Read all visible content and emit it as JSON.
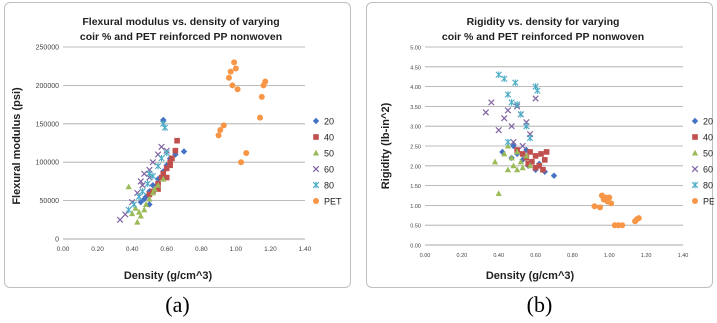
{
  "figure": {
    "caption_a": "(a)",
    "caption_b": "(b)"
  },
  "chart_data": [
    {
      "type": "scatter",
      "title_lines": [
        "Flexural modulus vs. density of varying",
        "coir % and PET reinforced PP nonwoven"
      ],
      "xlabel": "Density (g/cm^3)",
      "ylabel": "Flexural modulus (psi)",
      "xlim": [
        0,
        1.4
      ],
      "ylim": [
        0,
        250000
      ],
      "xticks": [
        "0.00",
        "0.20",
        "0.40",
        "0.60",
        "0.80",
        "1.00",
        "1.20",
        "1.40"
      ],
      "yticks": [
        "0",
        "50000",
        "100000",
        "150000",
        "200000",
        "250000"
      ],
      "grid": "horizontal",
      "legend_position": "right",
      "series": [
        {
          "name": "20",
          "color": "#4472c4",
          "marker": "diamond",
          "points": [
            [
              0.45,
              48000
            ],
            [
              0.48,
              55000
            ],
            [
              0.5,
              62000
            ],
            [
              0.52,
              70000
            ],
            [
              0.55,
              78000
            ],
            [
              0.58,
              88000
            ],
            [
              0.6,
              96000
            ],
            [
              0.62,
              105000
            ],
            [
              0.65,
              110000
            ],
            [
              0.7,
              114000
            ],
            [
              0.58,
              155000
            ],
            [
              0.5,
              45000
            ],
            [
              0.47,
              52000
            ],
            [
              0.55,
              72000
            ]
          ]
        },
        {
          "name": "40",
          "color": "#c0504d",
          "marker": "square",
          "points": [
            [
              0.5,
              58000
            ],
            [
              0.52,
              62000
            ],
            [
              0.55,
              72000
            ],
            [
              0.57,
              80000
            ],
            [
              0.58,
              85000
            ],
            [
              0.6,
              92000
            ],
            [
              0.62,
              100000
            ],
            [
              0.63,
              105000
            ],
            [
              0.65,
              115000
            ],
            [
              0.66,
              128000
            ],
            [
              0.6,
              80000
            ],
            [
              0.55,
              65000
            ],
            [
              0.62,
              96000
            ]
          ]
        },
        {
          "name": "50",
          "color": "#9bbb59",
          "marker": "triangle",
          "points": [
            [
              0.38,
              68000
            ],
            [
              0.4,
              33000
            ],
            [
              0.42,
              40000
            ],
            [
              0.43,
              22000
            ],
            [
              0.45,
              30000
            ],
            [
              0.47,
              38000
            ],
            [
              0.48,
              45000
            ],
            [
              0.5,
              52000
            ],
            [
              0.52,
              60000
            ],
            [
              0.53,
              65000
            ],
            [
              0.55,
              70000
            ],
            [
              0.58,
              78000
            ],
            [
              0.44,
              35000
            ]
          ]
        },
        {
          "name": "60",
          "color": "#8064a2",
          "marker": "x",
          "points": [
            [
              0.33,
              25000
            ],
            [
              0.36,
              32000
            ],
            [
              0.4,
              48000
            ],
            [
              0.43,
              60000
            ],
            [
              0.45,
              75000
            ],
            [
              0.47,
              85000
            ],
            [
              0.5,
              90000
            ],
            [
              0.52,
              100000
            ],
            [
              0.55,
              110000
            ],
            [
              0.57,
              120000
            ],
            [
              0.6,
              115000
            ],
            [
              0.46,
              70000
            ],
            [
              0.5,
              80000
            ]
          ]
        },
        {
          "name": "80",
          "color": "#4bacc6",
          "marker": "star",
          "points": [
            [
              0.38,
              38000
            ],
            [
              0.41,
              45000
            ],
            [
              0.44,
              55000
            ],
            [
              0.46,
              62000
            ],
            [
              0.49,
              72000
            ],
            [
              0.52,
              82000
            ],
            [
              0.55,
              95000
            ],
            [
              0.57,
              105000
            ],
            [
              0.58,
              150000
            ],
            [
              0.59,
              145000
            ],
            [
              0.6,
              112000
            ],
            [
              0.5,
              85000
            ]
          ]
        },
        {
          "name": "PET",
          "color": "#f79646",
          "marker": "circle",
          "points": [
            [
              0.9,
              135000
            ],
            [
              0.91,
              142000
            ],
            [
              0.93,
              148000
            ],
            [
              0.96,
              210000
            ],
            [
              0.97,
              218000
            ],
            [
              0.98,
              200000
            ],
            [
              0.99,
              230000
            ],
            [
              1.0,
              222000
            ],
            [
              1.01,
              195000
            ],
            [
              1.03,
              100000
            ],
            [
              1.06,
              112000
            ],
            [
              1.14,
              158000
            ],
            [
              1.15,
              185000
            ],
            [
              1.16,
              200000
            ],
            [
              1.17,
              205000
            ]
          ]
        }
      ]
    },
    {
      "type": "scatter",
      "title_lines": [
        "Rigidity vs. density for varying",
        "coir % and PET reinforced PP nonwoven"
      ],
      "xlabel": "Density (g/cm^3)",
      "ylabel": "Rigidity (lb-in^2)",
      "xlim": [
        0,
        1.4
      ],
      "ylim": [
        0,
        5
      ],
      "xticks": [
        "0.00",
        "0.20",
        "0.40",
        "0.60",
        "0.80",
        "1.00",
        "1.20",
        "1.40"
      ],
      "yticks": [
        "0.00",
        "0.50",
        "1.00",
        "1.50",
        "2.00",
        "2.50",
        "3.00",
        "3.50",
        "4.00",
        "4.50",
        "5.00"
      ],
      "grid": "horizontal",
      "legend_position": "right",
      "series": [
        {
          "name": "20",
          "color": "#4472c4",
          "marker": "diamond",
          "points": [
            [
              0.42,
              2.35
            ],
            [
              0.48,
              2.5
            ],
            [
              0.5,
              2.3
            ],
            [
              0.53,
              2.15
            ],
            [
              0.56,
              2.0
            ],
            [
              0.58,
              2.1
            ],
            [
              0.6,
              1.9
            ],
            [
              0.62,
              2.05
            ],
            [
              0.65,
              1.85
            ],
            [
              0.7,
              1.75
            ],
            [
              0.55,
              2.4
            ],
            [
              0.47,
              2.2
            ]
          ]
        },
        {
          "name": "40",
          "color": "#c0504d",
          "marker": "square",
          "points": [
            [
              0.5,
              2.4
            ],
            [
              0.53,
              2.3
            ],
            [
              0.55,
              2.2
            ],
            [
              0.57,
              2.35
            ],
            [
              0.58,
              2.1
            ],
            [
              0.6,
              2.25
            ],
            [
              0.62,
              2.0
            ],
            [
              0.63,
              2.3
            ],
            [
              0.65,
              2.15
            ],
            [
              0.66,
              2.35
            ],
            [
              0.6,
              1.95
            ],
            [
              0.56,
              2.05
            ],
            [
              0.64,
              1.9
            ]
          ]
        },
        {
          "name": "50",
          "color": "#9bbb59",
          "marker": "triangle",
          "points": [
            [
              0.38,
              2.1
            ],
            [
              0.4,
              1.3
            ],
            [
              0.43,
              2.3
            ],
            [
              0.45,
              2.5
            ],
            [
              0.47,
              2.2
            ],
            [
              0.48,
              2.0
            ],
            [
              0.5,
              1.9
            ],
            [
              0.52,
              2.1
            ],
            [
              0.53,
              1.95
            ],
            [
              0.55,
              2.25
            ],
            [
              0.57,
              2.0
            ],
            [
              0.45,
              1.9
            ],
            [
              0.5,
              2.35
            ]
          ]
        },
        {
          "name": "60",
          "color": "#8064a2",
          "marker": "x",
          "points": [
            [
              0.33,
              3.35
            ],
            [
              0.36,
              3.6
            ],
            [
              0.4,
              2.9
            ],
            [
              0.43,
              3.2
            ],
            [
              0.45,
              3.4
            ],
            [
              0.47,
              3.0
            ],
            [
              0.5,
              3.5
            ],
            [
              0.52,
              3.3
            ],
            [
              0.55,
              3.1
            ],
            [
              0.57,
              2.8
            ],
            [
              0.6,
              3.7
            ],
            [
              0.48,
              2.6
            ],
            [
              0.53,
              2.5
            ]
          ]
        },
        {
          "name": "80",
          "color": "#4bacc6",
          "marker": "star",
          "points": [
            [
              0.4,
              4.3
            ],
            [
              0.43,
              4.2
            ],
            [
              0.45,
              3.8
            ],
            [
              0.47,
              3.6
            ],
            [
              0.49,
              4.1
            ],
            [
              0.52,
              3.3
            ],
            [
              0.55,
              3.0
            ],
            [
              0.57,
              2.7
            ],
            [
              0.6,
              4.0
            ],
            [
              0.61,
              3.9
            ],
            [
              0.5,
              3.55
            ],
            [
              0.45,
              2.6
            ]
          ]
        },
        {
          "name": "PET",
          "color": "#f79646",
          "marker": "circle",
          "points": [
            [
              0.92,
              0.98
            ],
            [
              0.95,
              0.95
            ],
            [
              0.96,
              1.25
            ],
            [
              0.97,
              1.15
            ],
            [
              0.98,
              1.2
            ],
            [
              0.99,
              1.1
            ],
            [
              1.0,
              1.2
            ],
            [
              1.01,
              1.05
            ],
            [
              1.03,
              0.5
            ],
            [
              1.05,
              0.5
            ],
            [
              1.07,
              0.5
            ],
            [
              1.14,
              0.6
            ],
            [
              1.15,
              0.65
            ],
            [
              1.16,
              0.68
            ]
          ]
        }
      ]
    }
  ]
}
